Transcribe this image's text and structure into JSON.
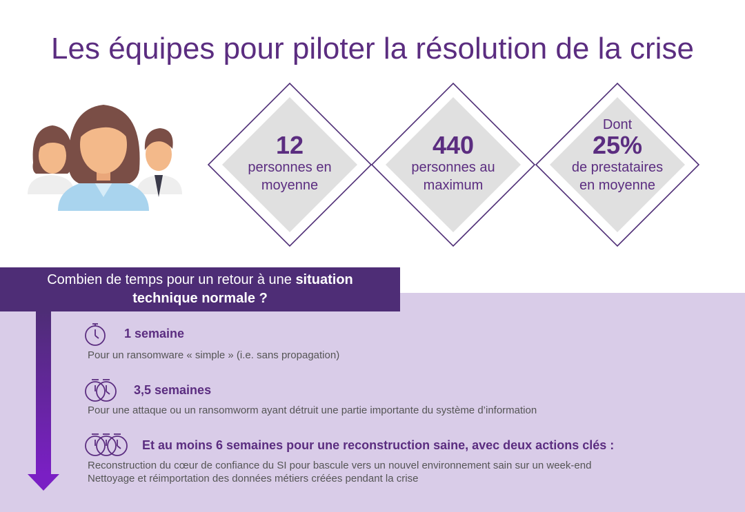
{
  "title": "Les équipes pour piloter la résolution de la crise",
  "stats": [
    {
      "prefix": "",
      "number": "12",
      "line1": "personnes en",
      "line2": "moyenne"
    },
    {
      "prefix": "",
      "number": "440",
      "line1": "personnes au",
      "line2": "maximum"
    },
    {
      "prefix": "Dont",
      "number": "25%",
      "line1": "de prestataires",
      "line2": "en moyenne"
    }
  ],
  "banner": {
    "text_normal": "Combien de temps pour un retour à une ",
    "text_bold_1": "situation",
    "text_bold_2": "technique normale ?"
  },
  "timeline": [
    {
      "title": "1 semaine",
      "desc": [
        "Pour un ransomware « simple » (i.e. sans propagation)"
      ],
      "icon": "stopwatch-icon"
    },
    {
      "title": "3,5 semaines",
      "desc": [
        "Pour une attaque ou un ransomworm ayant détruit une partie importante du système d’information"
      ],
      "icon": "two-stopwatches-icon"
    },
    {
      "title": "Et au moins 6 semaines pour une reconstruction saine, avec deux actions clés :",
      "desc": [
        "Reconstruction du cœur de confiance du SI pour bascule vers un nouvel environnement sain sur un week-end",
        "Nettoyage et réimportation des données métiers créées pendant la crise"
      ],
      "icon": "three-stopwatches-icon"
    }
  ],
  "colors": {
    "purple": "#5b2d80",
    "banner": "#4e2d76",
    "lilac": "#d9cce8",
    "diamond_fill": "#e0e0e0"
  }
}
